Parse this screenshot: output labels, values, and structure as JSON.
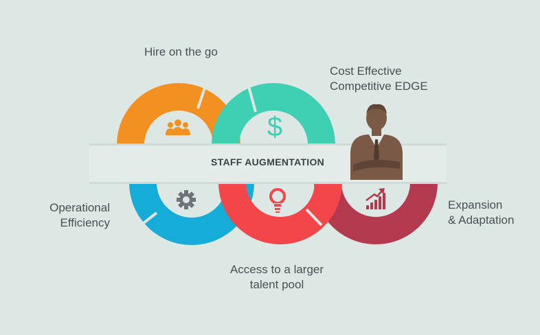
{
  "center_title": "STAFF AUGMENTATION",
  "labels": {
    "hire": "Hire on the go",
    "cost_line1": "Cost Effective",
    "cost_line2": "Competitive EDGE",
    "operational_line1": "Operational",
    "operational_line2": "Efficiency",
    "access_line1": "Access to a larger",
    "access_line2": "talent pool",
    "expansion_line1": "Expansion",
    "expansion_line2": "& Adaptation"
  },
  "icons": {
    "hire": "team-icon",
    "cost": "dollar-icon",
    "operational": "gear-icon",
    "access": "lightbulb-icon",
    "expansion": "growth-chart-icon",
    "person": "businessman-icon"
  },
  "colors": {
    "background": "#dde8e5",
    "orange": "#f29121",
    "teal": "#3fcfb2",
    "blue": "#16acd8",
    "red": "#f2464a",
    "maroon": "#b3394f",
    "band": "#e4ecea",
    "person": "#7a5a47"
  },
  "dollar_symbol": "$"
}
